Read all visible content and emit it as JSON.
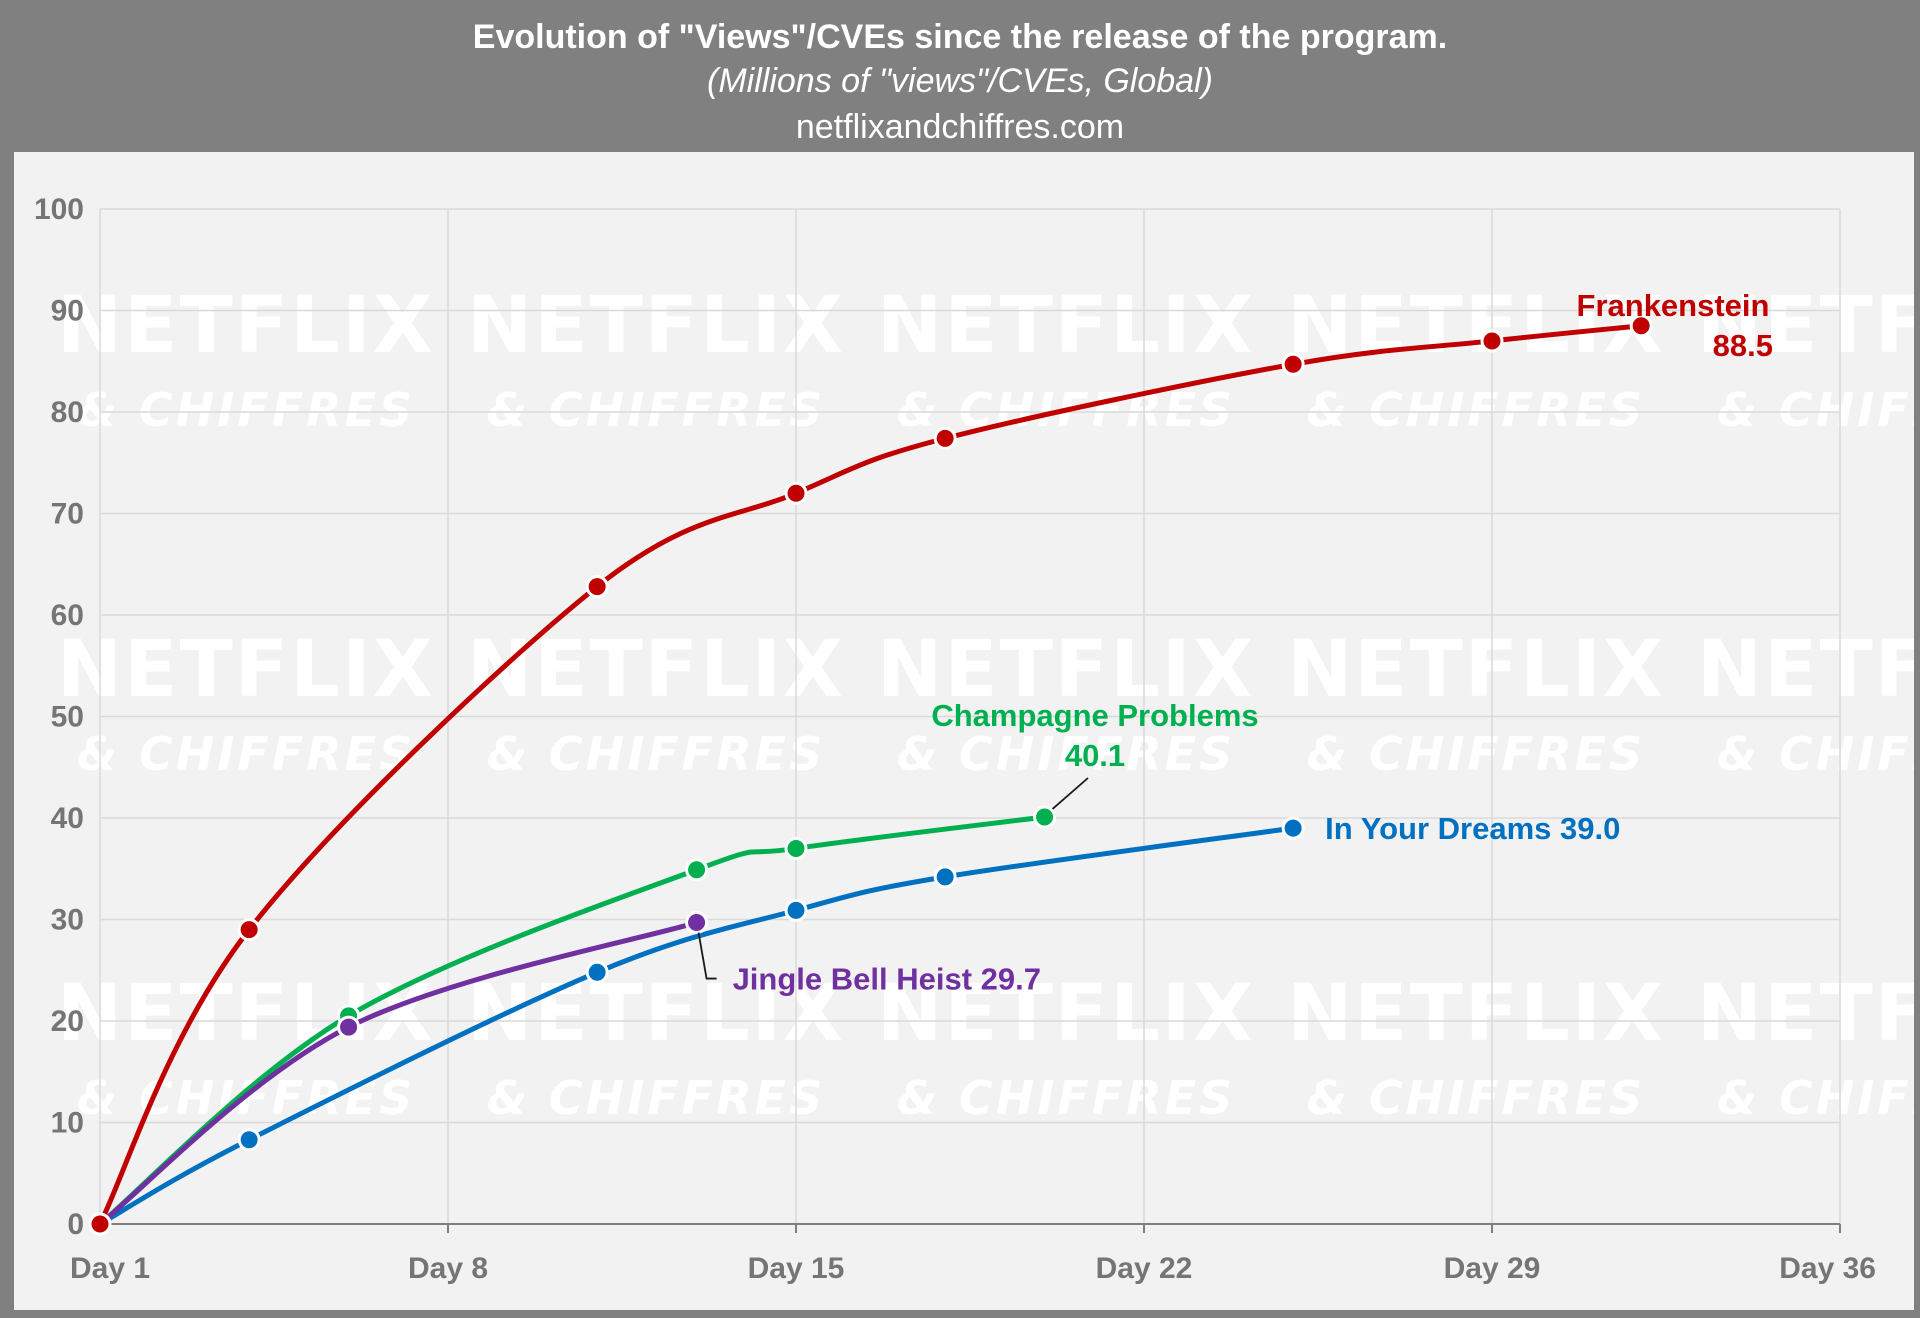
{
  "header": {
    "title": "Evolution of \"Views\"/CVEs since the release of the program.",
    "subtitle": "(Millions of \"views\"/CVEs, Global)",
    "source": "netflixandchiffres.com"
  },
  "watermark": {
    "line1": "NETFLIX",
    "line2": "& CHIFFRES"
  },
  "chart_data": {
    "type": "line",
    "title": "Evolution of \"Views\"/CVEs since the release of the program.",
    "ylabel": "Millions of \"views\"/CVEs, Global",
    "xlim": [
      1,
      36
    ],
    "ylim": [
      0,
      100
    ],
    "x_ticks": [
      {
        "value": 1,
        "label": "Day 1"
      },
      {
        "value": 8,
        "label": "Day 8"
      },
      {
        "value": 15,
        "label": "Day 15"
      },
      {
        "value": 22,
        "label": "Day 22"
      },
      {
        "value": 29,
        "label": "Day 29"
      },
      {
        "value": 36,
        "label": "Day 36"
      }
    ],
    "y_ticks": [
      0,
      10,
      20,
      30,
      40,
      50,
      60,
      70,
      80,
      90,
      100
    ],
    "grid": true,
    "series": [
      {
        "name": "Frankenstein",
        "color": "#c00000",
        "points": [
          [
            1,
            0
          ],
          [
            4,
            29
          ],
          [
            11,
            62.8
          ],
          [
            15,
            72
          ],
          [
            18,
            77.4
          ],
          [
            25,
            84.7
          ],
          [
            29,
            87
          ],
          [
            32,
            88.5
          ]
        ],
        "label_lines": [
          "Frankenstein",
          "88.5"
        ]
      },
      {
        "name": "Champagne Problems",
        "color": "#00b050",
        "points": [
          [
            1,
            0
          ],
          [
            6,
            20.5
          ],
          [
            13,
            34.9
          ],
          [
            15,
            37
          ],
          [
            20,
            40.1
          ]
        ],
        "label_lines": [
          "Champagne Problems",
          "40.1"
        ]
      },
      {
        "name": "In Your Dreams",
        "color": "#0070c0",
        "points": [
          [
            1,
            0
          ],
          [
            4,
            8.3
          ],
          [
            11,
            24.8
          ],
          [
            15,
            30.9
          ],
          [
            18,
            34.2
          ],
          [
            25,
            39
          ]
        ],
        "label_lines": [
          "In Your Dreams 39.0"
        ]
      },
      {
        "name": "Jingle Bell Heist",
        "color": "#7030a0",
        "points": [
          [
            1,
            0
          ],
          [
            6,
            19.4
          ],
          [
            13,
            29.7
          ]
        ],
        "label_lines": [
          "Jingle Bell Heist 29.7"
        ]
      }
    ]
  }
}
